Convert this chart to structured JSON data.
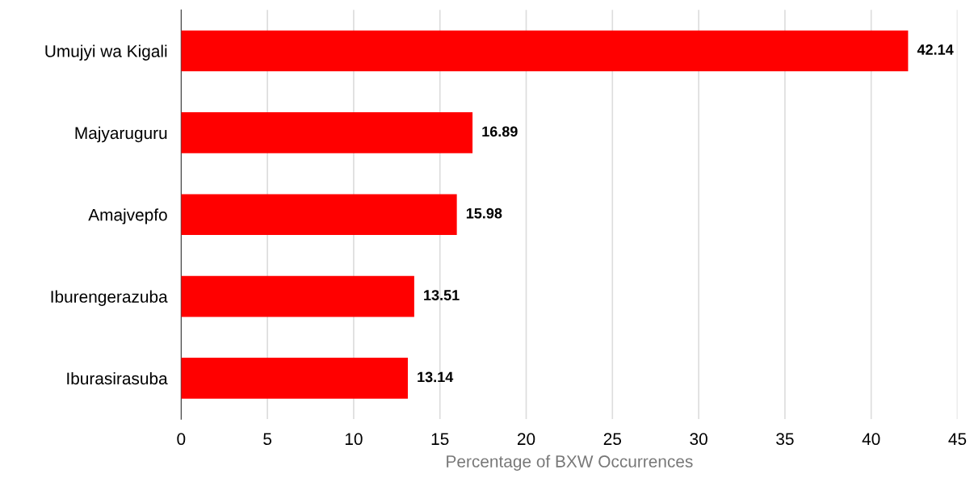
{
  "chart_data": {
    "type": "bar",
    "orientation": "horizontal",
    "xlabel": "Percentage of BXW Occurrences",
    "categories": [
      "Umujyi wa Kigali",
      "Majyaruguru",
      "Amajvepfo",
      "Iburengerazuba",
      "Iburasirasuba"
    ],
    "values": [
      42.14,
      16.89,
      15.98,
      13.51,
      13.14
    ],
    "color": "#ff0000",
    "xlim": [
      0,
      45
    ],
    "xticks": [
      0,
      5,
      10,
      15,
      20,
      25,
      30,
      35,
      40,
      45
    ],
    "grid": "x",
    "data_labels": true
  }
}
